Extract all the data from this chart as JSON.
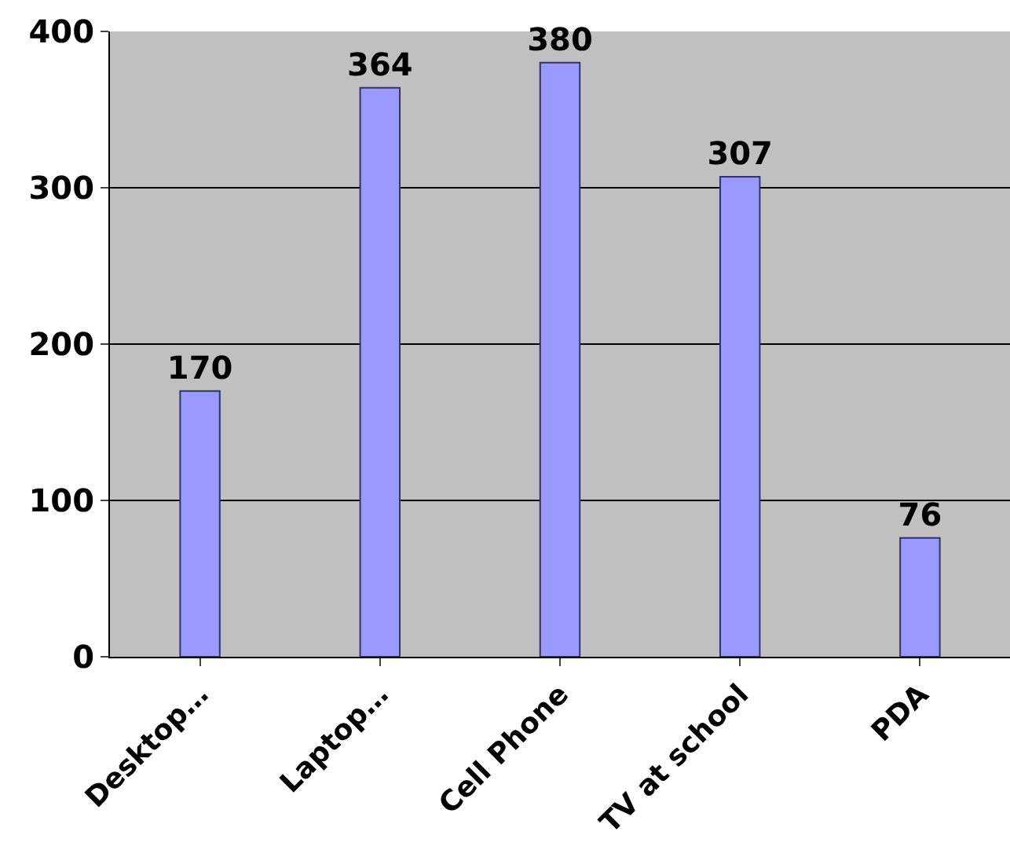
{
  "chart_data": {
    "type": "bar",
    "categories": [
      "Desktop…",
      "Laptop…",
      "Cell Phone",
      "TV at school",
      "PDA"
    ],
    "values": [
      170,
      364,
      380,
      307,
      76
    ],
    "color": "#9999ff",
    "ylim": [
      0,
      400
    ],
    "yticks": [
      0,
      100,
      200,
      300,
      400
    ],
    "grid": "y",
    "data_labels": true
  }
}
